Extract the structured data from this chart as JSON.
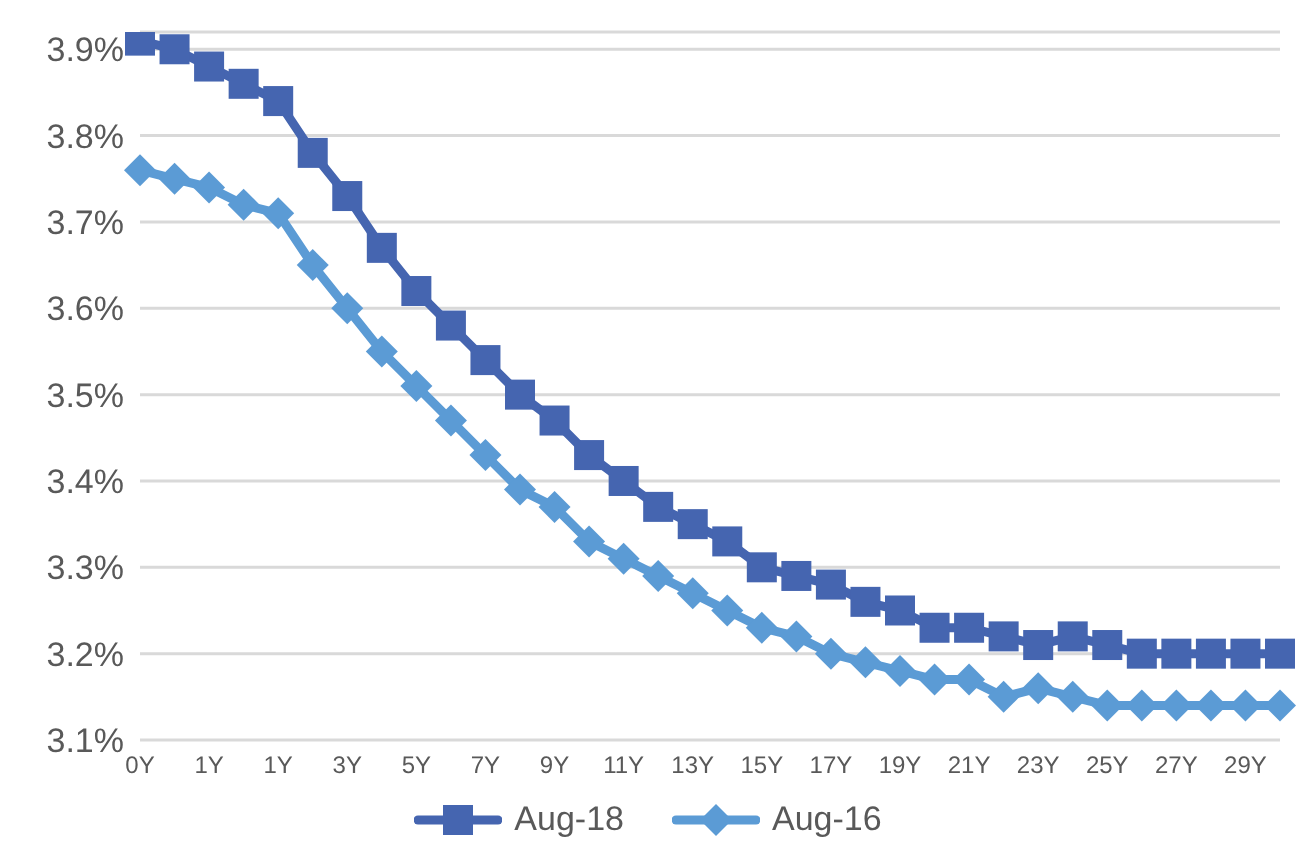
{
  "chart_data": {
    "type": "line",
    "categories": [
      "0Y",
      null,
      "1Y",
      null,
      "1Y",
      null,
      "3Y",
      null,
      "5Y",
      null,
      "7Y",
      null,
      "9Y",
      null,
      "11Y",
      null,
      "13Y",
      null,
      "15Y",
      null,
      "17Y",
      null,
      "19Y",
      null,
      "21Y",
      null,
      "23Y",
      null,
      "25Y",
      null,
      "27Y",
      null,
      "29Y",
      null
    ],
    "series": [
      {
        "name": "Aug-18",
        "color": "#4565b0",
        "marker": "square",
        "values": [
          3.91,
          3.9,
          3.88,
          3.86,
          3.84,
          3.78,
          3.73,
          3.67,
          3.62,
          3.58,
          3.54,
          3.5,
          3.47,
          3.43,
          3.4,
          3.37,
          3.35,
          3.33,
          3.3,
          3.29,
          3.28,
          3.26,
          3.25,
          3.23,
          3.23,
          3.22,
          3.21,
          3.22,
          3.21,
          3.2,
          3.2,
          3.2,
          3.2,
          3.2
        ]
      },
      {
        "name": "Aug-16",
        "color": "#5b9bd5",
        "marker": "diamond",
        "values": [
          3.76,
          3.75,
          3.74,
          3.72,
          3.71,
          3.65,
          3.6,
          3.55,
          3.51,
          3.47,
          3.43,
          3.39,
          3.37,
          3.33,
          3.31,
          3.29,
          3.27,
          3.25,
          3.23,
          3.22,
          3.2,
          3.19,
          3.18,
          3.17,
          3.17,
          3.15,
          3.16,
          3.15,
          3.14,
          3.14,
          3.14,
          3.14,
          3.14,
          3.14
        ]
      }
    ],
    "ylim": [
      3.1,
      3.92
    ],
    "yticks": [
      {
        "value": 3.1,
        "label": "3.1%"
      },
      {
        "value": 3.2,
        "label": "3.2%"
      },
      {
        "value": 3.3,
        "label": "3.3%"
      },
      {
        "value": 3.4,
        "label": "3.4%"
      },
      {
        "value": 3.5,
        "label": "3.5%"
      },
      {
        "value": 3.6,
        "label": "3.6%"
      },
      {
        "value": 3.7,
        "label": "3.7%"
      },
      {
        "value": 3.8,
        "label": "3.8%"
      },
      {
        "value": 3.9,
        "label": "3.9%"
      }
    ],
    "grid": "y",
    "legend": "bottom",
    "line_style": "solid"
  }
}
